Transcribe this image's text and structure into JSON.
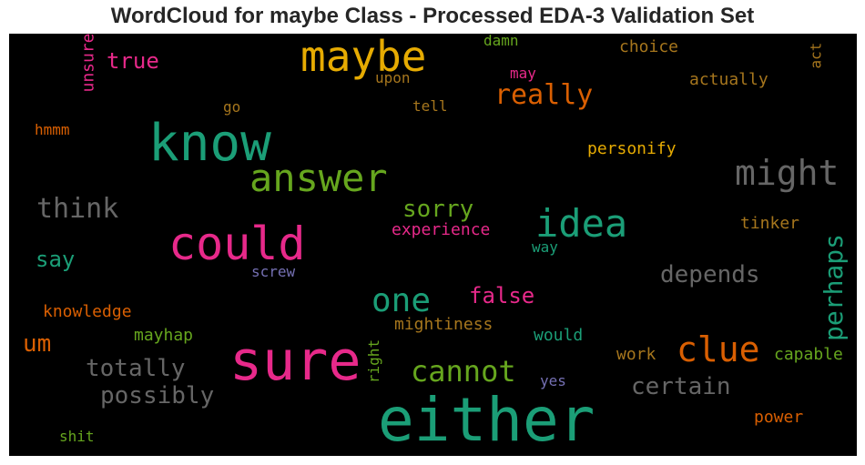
{
  "chart_data": {
    "type": "wordcloud",
    "title": "WordCloud for maybe Class - Processed EDA-3 Validation Set",
    "background": "#000000",
    "words": [
      {
        "text": "either",
        "color": "#1b9e77"
      },
      {
        "text": "sure",
        "color": "#e7298a"
      },
      {
        "text": "know",
        "color": "#1b9e77"
      },
      {
        "text": "could",
        "color": "#e7298a"
      },
      {
        "text": "maybe",
        "color": "#e6ab02"
      },
      {
        "text": "answer",
        "color": "#66a61e"
      },
      {
        "text": "idea",
        "color": "#1b9e77"
      },
      {
        "text": "might",
        "color": "#666666"
      },
      {
        "text": "clue",
        "color": "#d95f02"
      },
      {
        "text": "one",
        "color": "#1b9e77"
      },
      {
        "text": "cannot",
        "color": "#66a61e"
      },
      {
        "text": "really",
        "color": "#d95f02"
      },
      {
        "text": "think",
        "color": "#666666"
      },
      {
        "text": "perhaps",
        "color": "#1b9e77"
      },
      {
        "text": "possibly",
        "color": "#666666"
      },
      {
        "text": "totally",
        "color": "#666666"
      },
      {
        "text": "certain",
        "color": "#666666"
      },
      {
        "text": "depends",
        "color": "#666666"
      },
      {
        "text": "sorry",
        "color": "#66a61e"
      },
      {
        "text": "false",
        "color": "#e7298a"
      },
      {
        "text": "um",
        "color": "#d95f02"
      },
      {
        "text": "say",
        "color": "#1b9e77"
      },
      {
        "text": "true",
        "color": "#e7298a"
      },
      {
        "text": "unsure",
        "color": "#e7298a"
      },
      {
        "text": "personify",
        "color": "#e6ab02"
      },
      {
        "text": "experience",
        "color": "#e7298a"
      },
      {
        "text": "knowledge",
        "color": "#d95f02"
      },
      {
        "text": "mightiness",
        "color": "#a6761d"
      },
      {
        "text": "mayhap",
        "color": "#66a61e"
      },
      {
        "text": "would",
        "color": "#1b9e77"
      },
      {
        "text": "capable",
        "color": "#66a61e"
      },
      {
        "text": "actually",
        "color": "#a6761d"
      },
      {
        "text": "choice",
        "color": "#a6761d"
      },
      {
        "text": "tinker",
        "color": "#a6761d"
      },
      {
        "text": "work",
        "color": "#a6761d"
      },
      {
        "text": "power",
        "color": "#d95f02"
      },
      {
        "text": "right",
        "color": "#66a61e"
      },
      {
        "text": "screw",
        "color": "#7570b3"
      },
      {
        "text": "damn",
        "color": "#66a61e"
      },
      {
        "text": "act",
        "color": "#a6761d"
      },
      {
        "text": "upon",
        "color": "#a6761d"
      },
      {
        "text": "tell",
        "color": "#a6761d"
      },
      {
        "text": "go",
        "color": "#a6761d"
      },
      {
        "text": "hmmm",
        "color": "#d95f02"
      },
      {
        "text": "may",
        "color": "#e7298a"
      },
      {
        "text": "way",
        "color": "#1b9e77"
      },
      {
        "text": "yes",
        "color": "#7570b3"
      },
      {
        "text": "shit",
        "color": "#66a61e"
      }
    ]
  }
}
